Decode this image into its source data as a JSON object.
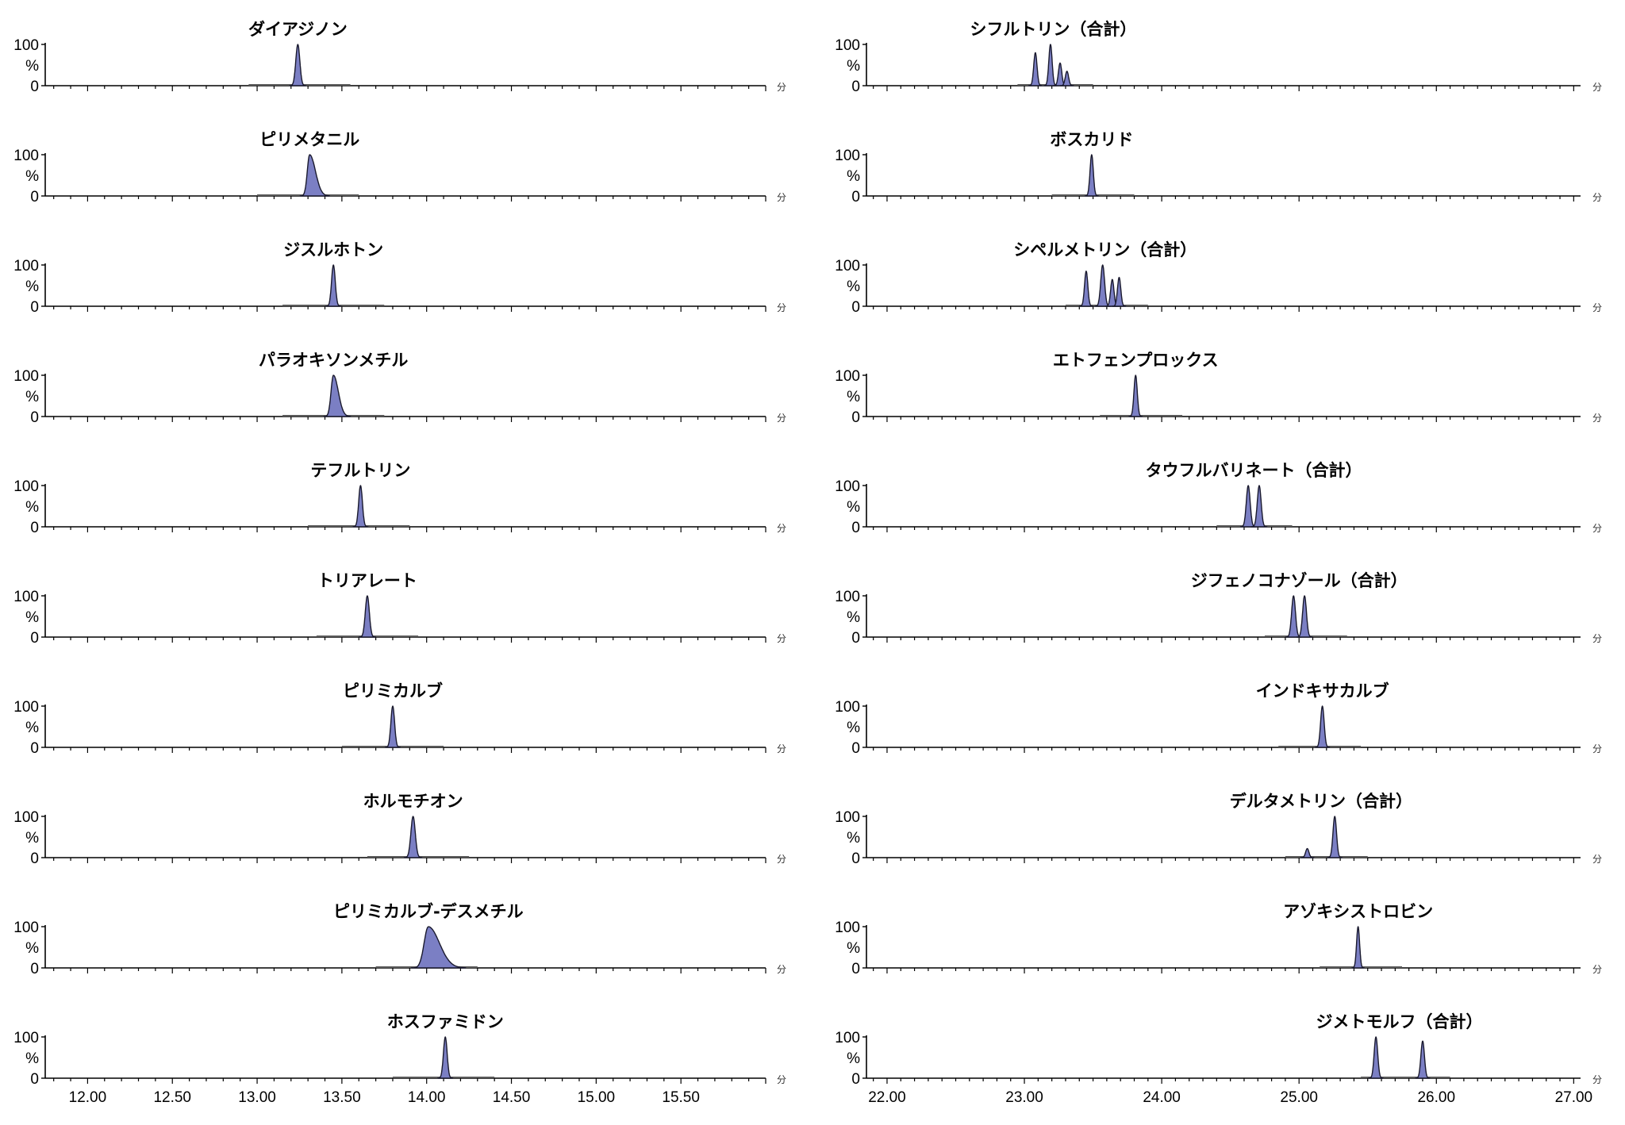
{
  "chart_data": [
    {
      "type": "area",
      "x_unit": "分",
      "xlim": [
        11.75,
        16.0
      ],
      "x_ticks": [
        "12.00",
        "12.50",
        "13.00",
        "13.50",
        "14.00",
        "14.50",
        "15.00",
        "15.50"
      ],
      "y_ticks": [
        "100",
        "%",
        "0"
      ],
      "ylim": [
        0,
        100
      ],
      "grid": false,
      "panels": [
        {
          "title": "ダイアジノン",
          "baseline": [
            12.95,
            13.55
          ],
          "peaks": [
            {
              "rt": 13.24,
              "height": 100,
              "width": 0.012
            }
          ]
        },
        {
          "title": "ピリメタニル",
          "baseline": [
            13.0,
            13.6
          ],
          "peaks": [
            {
              "rt": 13.31,
              "height": 100,
              "width": 0.014,
              "tail": 0.02
            }
          ]
        },
        {
          "title": "ジスルホトン",
          "baseline": [
            13.15,
            13.75
          ],
          "peaks": [
            {
              "rt": 13.45,
              "height": 100,
              "width": 0.011
            }
          ]
        },
        {
          "title": "パラオキソンメチル",
          "baseline": [
            13.15,
            13.75
          ],
          "peaks": [
            {
              "rt": 13.45,
              "height": 100,
              "width": 0.014,
              "tail": 0.015
            }
          ]
        },
        {
          "title": "テフルトリン",
          "baseline": [
            13.3,
            13.9
          ],
          "peaks": [
            {
              "rt": 13.61,
              "height": 100,
              "width": 0.011
            }
          ]
        },
        {
          "title": "トリアレート",
          "baseline": [
            13.35,
            13.95
          ],
          "peaks": [
            {
              "rt": 13.65,
              "height": 100,
              "width": 0.012
            }
          ]
        },
        {
          "title": "ピリミカルブ",
          "baseline": [
            13.5,
            14.1
          ],
          "peaks": [
            {
              "rt": 13.8,
              "height": 100,
              "width": 0.011
            }
          ]
        },
        {
          "title": "ホルモチオン",
          "baseline": [
            13.65,
            14.25
          ],
          "peaks": [
            {
              "rt": 13.92,
              "height": 100,
              "width": 0.013
            }
          ]
        },
        {
          "title": "ピリミカルブ-デスメチル",
          "baseline": [
            13.7,
            14.3
          ],
          "peaks": [
            {
              "rt": 14.01,
              "height": 100,
              "width": 0.025,
              "tail": 0.04
            }
          ]
        },
        {
          "title": "ホスファミドン",
          "baseline": [
            13.8,
            14.4
          ],
          "peaks": [
            {
              "rt": 14.11,
              "height": 100,
              "width": 0.011
            }
          ]
        }
      ]
    },
    {
      "type": "area",
      "x_unit": "分",
      "xlim": [
        21.85,
        27.05
      ],
      "x_ticks": [
        "22.00",
        "23.00",
        "24.00",
        "25.00",
        "26.00",
        "27.00"
      ],
      "y_ticks": [
        "100",
        "%",
        "0"
      ],
      "ylim": [
        0,
        100
      ],
      "grid": false,
      "panels": [
        {
          "title": "シフルトリン（合計）",
          "baseline": [
            22.95,
            23.5
          ],
          "peaks": [
            {
              "rt": 23.08,
              "height": 80,
              "width": 0.012
            },
            {
              "rt": 23.19,
              "height": 100,
              "width": 0.012
            },
            {
              "rt": 23.26,
              "height": 55,
              "width": 0.012
            },
            {
              "rt": 23.31,
              "height": 35,
              "width": 0.012
            }
          ]
        },
        {
          "title": "ボスカリド",
          "baseline": [
            23.2,
            23.8
          ],
          "peaks": [
            {
              "rt": 23.49,
              "height": 100,
              "width": 0.012
            }
          ]
        },
        {
          "title": "シペルメトリン（合計）",
          "baseline": [
            23.3,
            23.9
          ],
          "peaks": [
            {
              "rt": 23.45,
              "height": 85,
              "width": 0.012
            },
            {
              "rt": 23.57,
              "height": 100,
              "width": 0.014
            },
            {
              "rt": 23.64,
              "height": 65,
              "width": 0.012
            },
            {
              "rt": 23.69,
              "height": 70,
              "width": 0.012
            }
          ]
        },
        {
          "title": "エトフェンプロックス",
          "baseline": [
            23.55,
            24.15
          ],
          "peaks": [
            {
              "rt": 23.81,
              "height": 100,
              "width": 0.012
            }
          ]
        },
        {
          "title": "タウフルバリネート（合計）",
          "baseline": [
            24.4,
            24.95
          ],
          "peaks": [
            {
              "rt": 24.63,
              "height": 100,
              "width": 0.014
            },
            {
              "rt": 24.71,
              "height": 100,
              "width": 0.014
            }
          ]
        },
        {
          "title": "ジフェノコナゾール（合計）",
          "baseline": [
            24.75,
            25.35
          ],
          "peaks": [
            {
              "rt": 24.96,
              "height": 100,
              "width": 0.014
            },
            {
              "rt": 25.04,
              "height": 100,
              "width": 0.014
            }
          ]
        },
        {
          "title": "インドキサカルブ",
          "baseline": [
            24.85,
            25.45
          ],
          "peaks": [
            {
              "rt": 25.17,
              "height": 100,
              "width": 0.013
            }
          ]
        },
        {
          "title": "デルタメトリン（合計）",
          "baseline": [
            24.9,
            25.5
          ],
          "peaks": [
            {
              "rt": 25.06,
              "height": 22,
              "width": 0.012
            },
            {
              "rt": 25.26,
              "height": 100,
              "width": 0.013
            }
          ]
        },
        {
          "title": "アゾキシストロビン",
          "baseline": [
            25.15,
            25.75
          ],
          "peaks": [
            {
              "rt": 25.43,
              "height": 100,
              "width": 0.011
            }
          ]
        },
        {
          "title": "ジメトモルフ（合計）",
          "baseline": [
            25.45,
            26.1
          ],
          "peaks": [
            {
              "rt": 25.56,
              "height": 100,
              "width": 0.013
            },
            {
              "rt": 25.9,
              "height": 90,
              "width": 0.013
            }
          ]
        }
      ]
    }
  ]
}
